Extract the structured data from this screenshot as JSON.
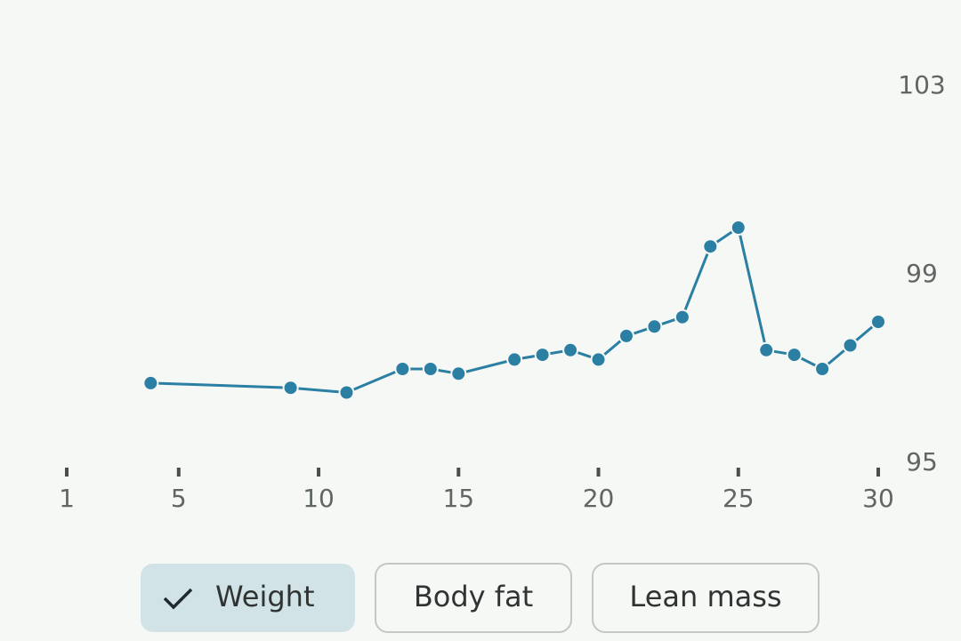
{
  "chart_data": {
    "type": "line",
    "x": [
      4,
      9,
      11,
      13,
      14,
      15,
      17,
      18,
      19,
      20,
      21,
      22,
      23,
      24,
      25,
      26,
      27,
      28,
      29,
      30
    ],
    "values": [
      96.7,
      96.6,
      96.5,
      97.0,
      97.0,
      96.9,
      97.2,
      97.3,
      97.4,
      97.2,
      97.7,
      97.9,
      98.1,
      99.6,
      100.0,
      97.4,
      97.3,
      97.0,
      97.5,
      98.0
    ],
    "color": "#2a7fa3",
    "xlim": [
      1,
      30
    ],
    "xticks": [
      1,
      5,
      10,
      15,
      20,
      25,
      30
    ],
    "ylim": [
      95,
      103
    ],
    "yticks": [
      95,
      99,
      103
    ]
  },
  "filters": {
    "selected": "Weight",
    "options": [
      "Weight",
      "Body fat",
      "Lean mass"
    ]
  }
}
